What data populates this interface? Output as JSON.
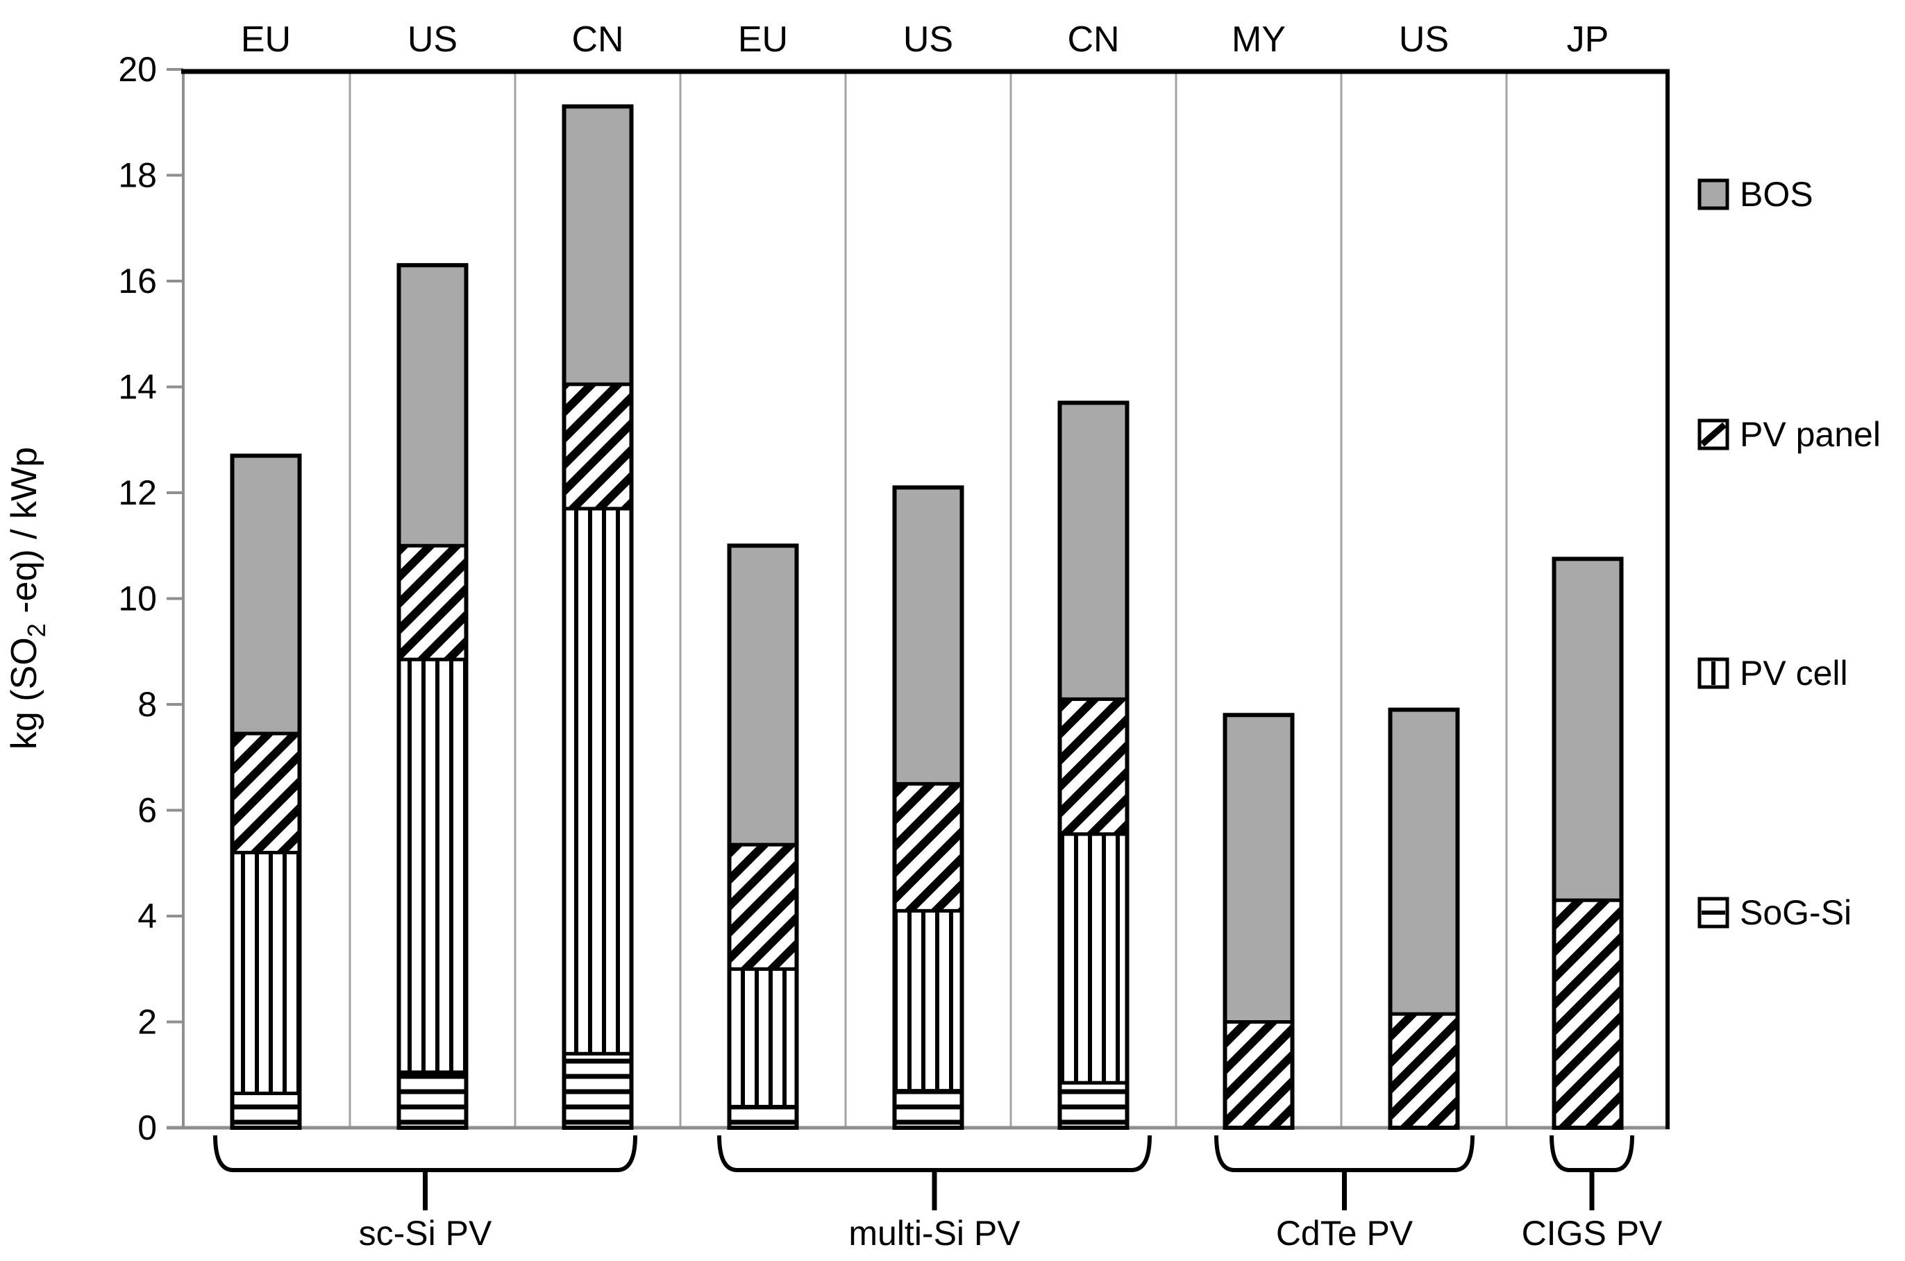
{
  "y_axis": {
    "title_prefix": "kg (SO",
    "title_sub": "2",
    "title_suffix": " -eq) / kWp",
    "tick_labels": [
      "0",
      "2",
      "4",
      "6",
      "8",
      "10",
      "12",
      "14",
      "16",
      "18",
      "20"
    ]
  },
  "top_axis_labels": [
    "EU",
    "US",
    "CN",
    "EU",
    "US",
    "CN",
    "MY",
    "US",
    "JP"
  ],
  "legend_items": [
    "BOS",
    "PV panel",
    "PV cell",
    "SoG-Si"
  ],
  "group_labels": [
    "sc-Si PV",
    "multi-Si PV",
    "CdTe PV",
    "CIGS PV"
  ],
  "chart_data": {
    "type": "bar",
    "stacked": true,
    "title": "",
    "xlabel": "",
    "ylabel": "kg (SO2-eq) / kWp",
    "ylim": [
      0,
      20
    ],
    "ytick_step": 2,
    "grid": false,
    "legend_position": "right",
    "categories": [
      "EU",
      "US",
      "CN",
      "EU",
      "US",
      "CN",
      "MY",
      "US",
      "JP"
    ],
    "groups": [
      {
        "label": "sc-Si PV",
        "bar_indices": [
          0,
          1,
          2
        ]
      },
      {
        "label": "multi-Si PV",
        "bar_indices": [
          3,
          4,
          5
        ]
      },
      {
        "label": "CdTe PV",
        "bar_indices": [
          6,
          7
        ]
      },
      {
        "label": "CIGS PV",
        "bar_indices": [
          8
        ]
      }
    ],
    "series": [
      {
        "name": "SoG-Si",
        "pattern": "horizontal-hatch",
        "values": [
          0.65,
          1.05,
          1.4,
          0.4,
          0.7,
          0.85,
          0,
          0,
          0
        ]
      },
      {
        "name": "PV cell",
        "pattern": "vertical-hatch",
        "values": [
          4.55,
          7.8,
          10.3,
          2.6,
          3.4,
          4.7,
          0,
          0,
          0
        ]
      },
      {
        "name": "PV panel",
        "pattern": "diagonal-hatch",
        "values": [
          2.25,
          2.15,
          2.35,
          2.35,
          2.4,
          2.55,
          2.0,
          2.15,
          4.3
        ]
      },
      {
        "name": "BOS",
        "pattern": "solid",
        "color": "#a9a9a9",
        "values": [
          5.25,
          5.3,
          5.25,
          5.65,
          5.6,
          5.6,
          5.8,
          5.75,
          6.45
        ]
      }
    ],
    "totals": [
      12.7,
      16.3,
      19.3,
      11.0,
      12.1,
      13.7,
      7.8,
      7.9,
      10.75
    ]
  },
  "colors": {
    "bos_gray": "#a9a9a9",
    "axis_gray": "#8f8f8f",
    "separator_gray": "#a3a3a3",
    "ink": "#000000",
    "background": "#ffffff"
  }
}
